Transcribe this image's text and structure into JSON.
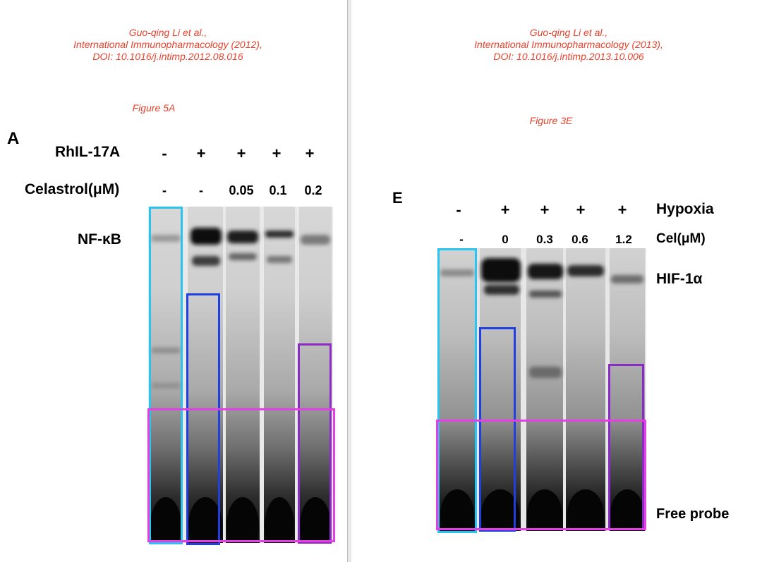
{
  "left": {
    "citation": {
      "authors": "Guo-qing Li et al.,",
      "journal": "International Immunopharmacology (2012),",
      "doi": "DOI: 10.1016/j.intimp.2012.08.016"
    },
    "figure_label": "Figure 5A",
    "panel_letter": "A",
    "row1_label": "RhIL-17A",
    "row1_values": [
      "-",
      "+",
      "+",
      "+",
      "+"
    ],
    "row2_label": "Celastrol(μM)",
    "row2_values": [
      "-",
      "-",
      "0.05",
      "0.1",
      "0.2"
    ],
    "band_label": "NF-κB"
  },
  "right": {
    "citation": {
      "authors": "Guo-qing Li et al.,",
      "journal": "International Immunopharmacology (2013),",
      "doi": "DOI: 10.1016/j.intimp.2013.10.006"
    },
    "figure_label": "Figure 3E",
    "panel_letter": "E",
    "row1_label": "Hypoxia",
    "row1_values": [
      "-",
      "+",
      "+",
      "+",
      "+"
    ],
    "row2_label": "Cel(μM)",
    "row2_values": [
      "-",
      "0",
      "0.3",
      "0.6",
      "1.2"
    ],
    "band_label": "HIF-1α",
    "free_probe_label": "Free probe"
  },
  "colors": {
    "citation_text": "#e8412b",
    "box_cyan": "#29c4ef",
    "box_blue": "#1f3fe0",
    "box_purple": "#8a2bc4",
    "box_magenta": "#e43ee4"
  }
}
